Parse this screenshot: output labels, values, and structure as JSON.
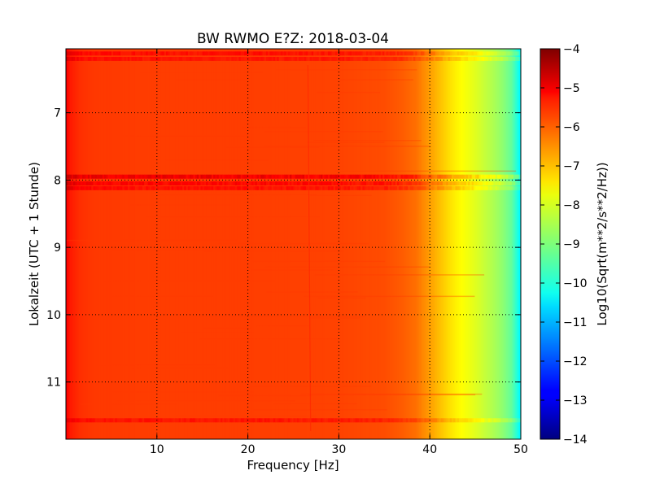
{
  "chart_data": {
    "type": "heatmap",
    "title": "BW RWMO E?Z: 2018-03-04",
    "xlabel": "Frequency [Hz]",
    "ylabel": "Lokalzeit (UTC + 1 Stunde)",
    "xlim": [
      0,
      50
    ],
    "ylim": [
      11.85,
      6.05
    ],
    "x_ticks": [
      10,
      20,
      30,
      40,
      50
    ],
    "y_ticks": [
      7,
      8,
      9,
      10,
      11
    ],
    "grid": true,
    "colorbar": {
      "label": "Log10(Sqrt(m**2/s**2/Hz))",
      "range": [
        -14,
        -4
      ],
      "ticks": [
        -4,
        -5,
        -6,
        -7,
        -8,
        -9,
        -10,
        -11,
        -12,
        -13,
        -14
      ],
      "colormap": "jet"
    },
    "profile": {
      "frequency_hz": [
        0,
        0.5,
        1.5,
        3,
        10,
        20,
        30,
        35,
        37,
        38.5,
        40,
        41,
        42,
        43,
        44,
        45,
        46,
        47,
        48,
        49,
        49.5,
        50
      ],
      "log10_amplitude": [
        -5.2,
        -5.5,
        -5.7,
        -5.8,
        -5.85,
        -5.85,
        -5.9,
        -6.0,
        -6.15,
        -6.35,
        -6.8,
        -7.1,
        -7.4,
        -7.65,
        -7.85,
        -8.05,
        -8.3,
        -8.55,
        -8.85,
        -9.3,
        -9.8,
        -10.4
      ]
    },
    "bands": [
      {
        "time": 6.12,
        "log10_offset": 0.45
      },
      {
        "time": 6.2,
        "log10_offset": 0.4
      },
      {
        "time": 7.95,
        "log10_offset": 0.7
      },
      {
        "time": 8.05,
        "log10_offset": 0.55
      },
      {
        "time": 8.12,
        "log10_offset": 0.45
      },
      {
        "time": 11.57,
        "log10_offset": 0.4
      }
    ]
  }
}
